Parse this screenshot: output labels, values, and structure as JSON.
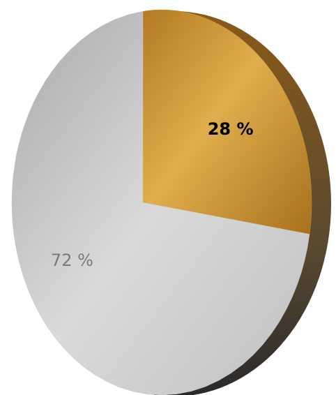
{
  "chart_data": {
    "type": "pie",
    "values": [
      28,
      72
    ],
    "value_labels": [
      "28 %",
      "72 %"
    ],
    "colors": [
      "#c8922e",
      "#c4c4c4"
    ],
    "start_angle": 0,
    "direction": "clockwise"
  }
}
